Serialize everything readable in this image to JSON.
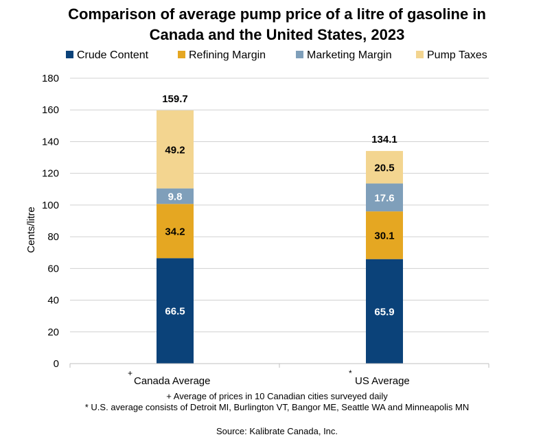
{
  "chart_data": {
    "type": "bar",
    "stacked": true,
    "title_line1": "Comparison of average pump price of a litre of gasoline in",
    "title_line2": "Canada and the United States,  2023",
    "ylabel": "Cents/litre",
    "ylim": [
      0,
      180
    ],
    "yticks": [
      0,
      20,
      40,
      60,
      80,
      100,
      120,
      140,
      160,
      180
    ],
    "grid": true,
    "legend_position": "top",
    "categories": [
      "Canada Average",
      "US Average"
    ],
    "category_markers": [
      "+",
      "*"
    ],
    "totals": [
      159.7,
      134.1
    ],
    "series": [
      {
        "name": "Crude Content",
        "color": "#0b4279",
        "values": [
          66.5,
          65.9
        ],
        "label_color": "#ffffff"
      },
      {
        "name": "Refining Margin",
        "color": "#e5a722",
        "values": [
          34.2,
          30.1
        ],
        "label_color": "#000000"
      },
      {
        "name": "Marketing Margin",
        "color": "#7f9fba",
        "values": [
          9.8,
          17.6
        ],
        "label_color": "#ffffff"
      },
      {
        "name": "Pump Taxes",
        "color": "#f3d590",
        "values": [
          49.2,
          20.5
        ],
        "label_color": "#000000"
      }
    ]
  },
  "notes": {
    "note1": "+ Average of prices in 10 Canadian cities surveyed daily",
    "note2": "* U.S. average consists of Detroit MI, Burlington VT, Bangor ME, Seattle WA and Minneapolis MN",
    "source": "Source: Kalibrate Canada, Inc."
  }
}
